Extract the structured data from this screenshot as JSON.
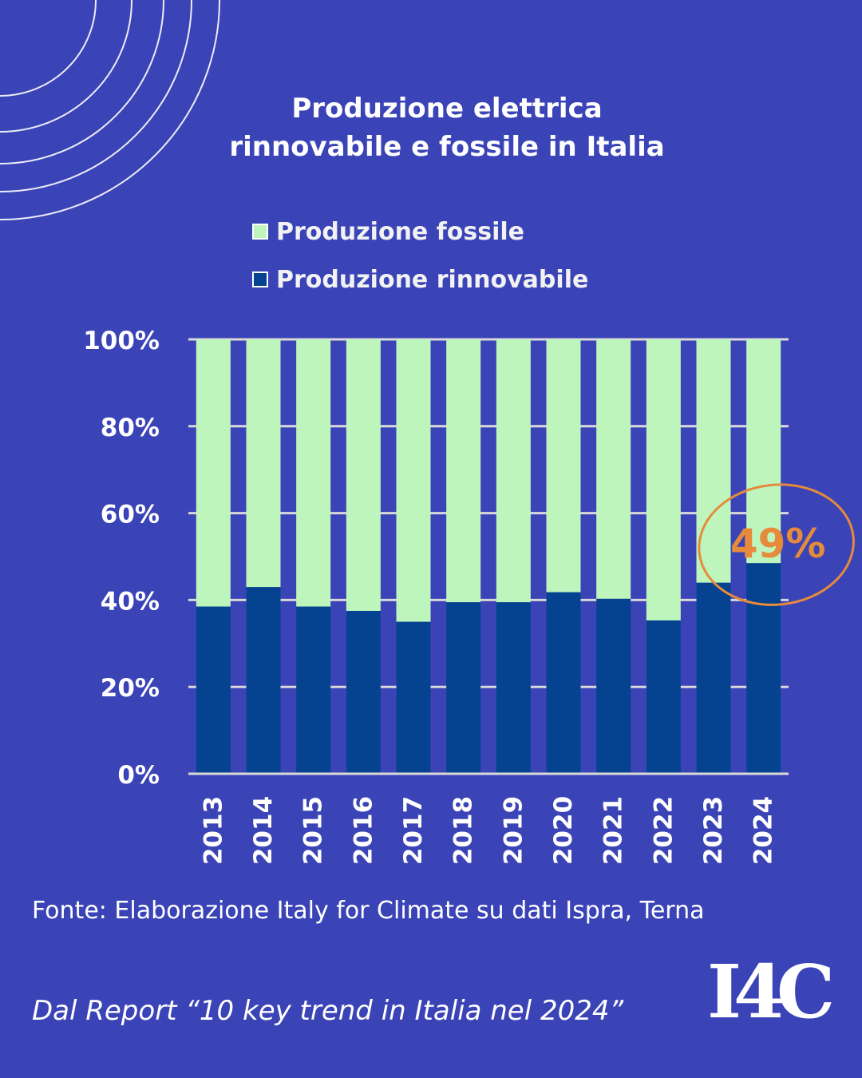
{
  "title": {
    "line1": "Produzione elettrica",
    "line2": "rinnovabile e fossile in Italia"
  },
  "legend": {
    "fossil": "Produzione fossile",
    "renewable": "Produzione rinnovabile"
  },
  "colors": {
    "background": "#3b44b7",
    "fossil": "#bdf5bd",
    "renewable": "#054390",
    "highlight": "#e68a3c"
  },
  "chart_data": {
    "type": "bar",
    "stacked": true,
    "percent": true,
    "categories": [
      "2013",
      "2014",
      "2015",
      "2016",
      "2017",
      "2018",
      "2019",
      "2020",
      "2021",
      "2022",
      "2023",
      "2024"
    ],
    "series": [
      {
        "name": "Produzione rinnovabile",
        "values": [
          38.5,
          43,
          38.5,
          37.5,
          35,
          39.5,
          39.5,
          41.8,
          40.3,
          35.3,
          44,
          48.5
        ]
      },
      {
        "name": "Produzione fossile",
        "values": [
          61.5,
          57,
          61.5,
          62.5,
          65,
          60.5,
          60.5,
          58.2,
          59.7,
          64.7,
          56,
          51.5
        ]
      }
    ],
    "yticks": [
      "0%",
      "20%",
      "40%",
      "60%",
      "80%",
      "100%"
    ],
    "ylim": [
      0,
      100
    ],
    "annotation": {
      "label": "49%",
      "category": "2024"
    }
  },
  "source": "Fonte: Elaborazione Italy for Climate su dati Ispra, Terna",
  "report": "Dal Report “10 key trend in Italia nel 2024”",
  "logo": "I4C"
}
